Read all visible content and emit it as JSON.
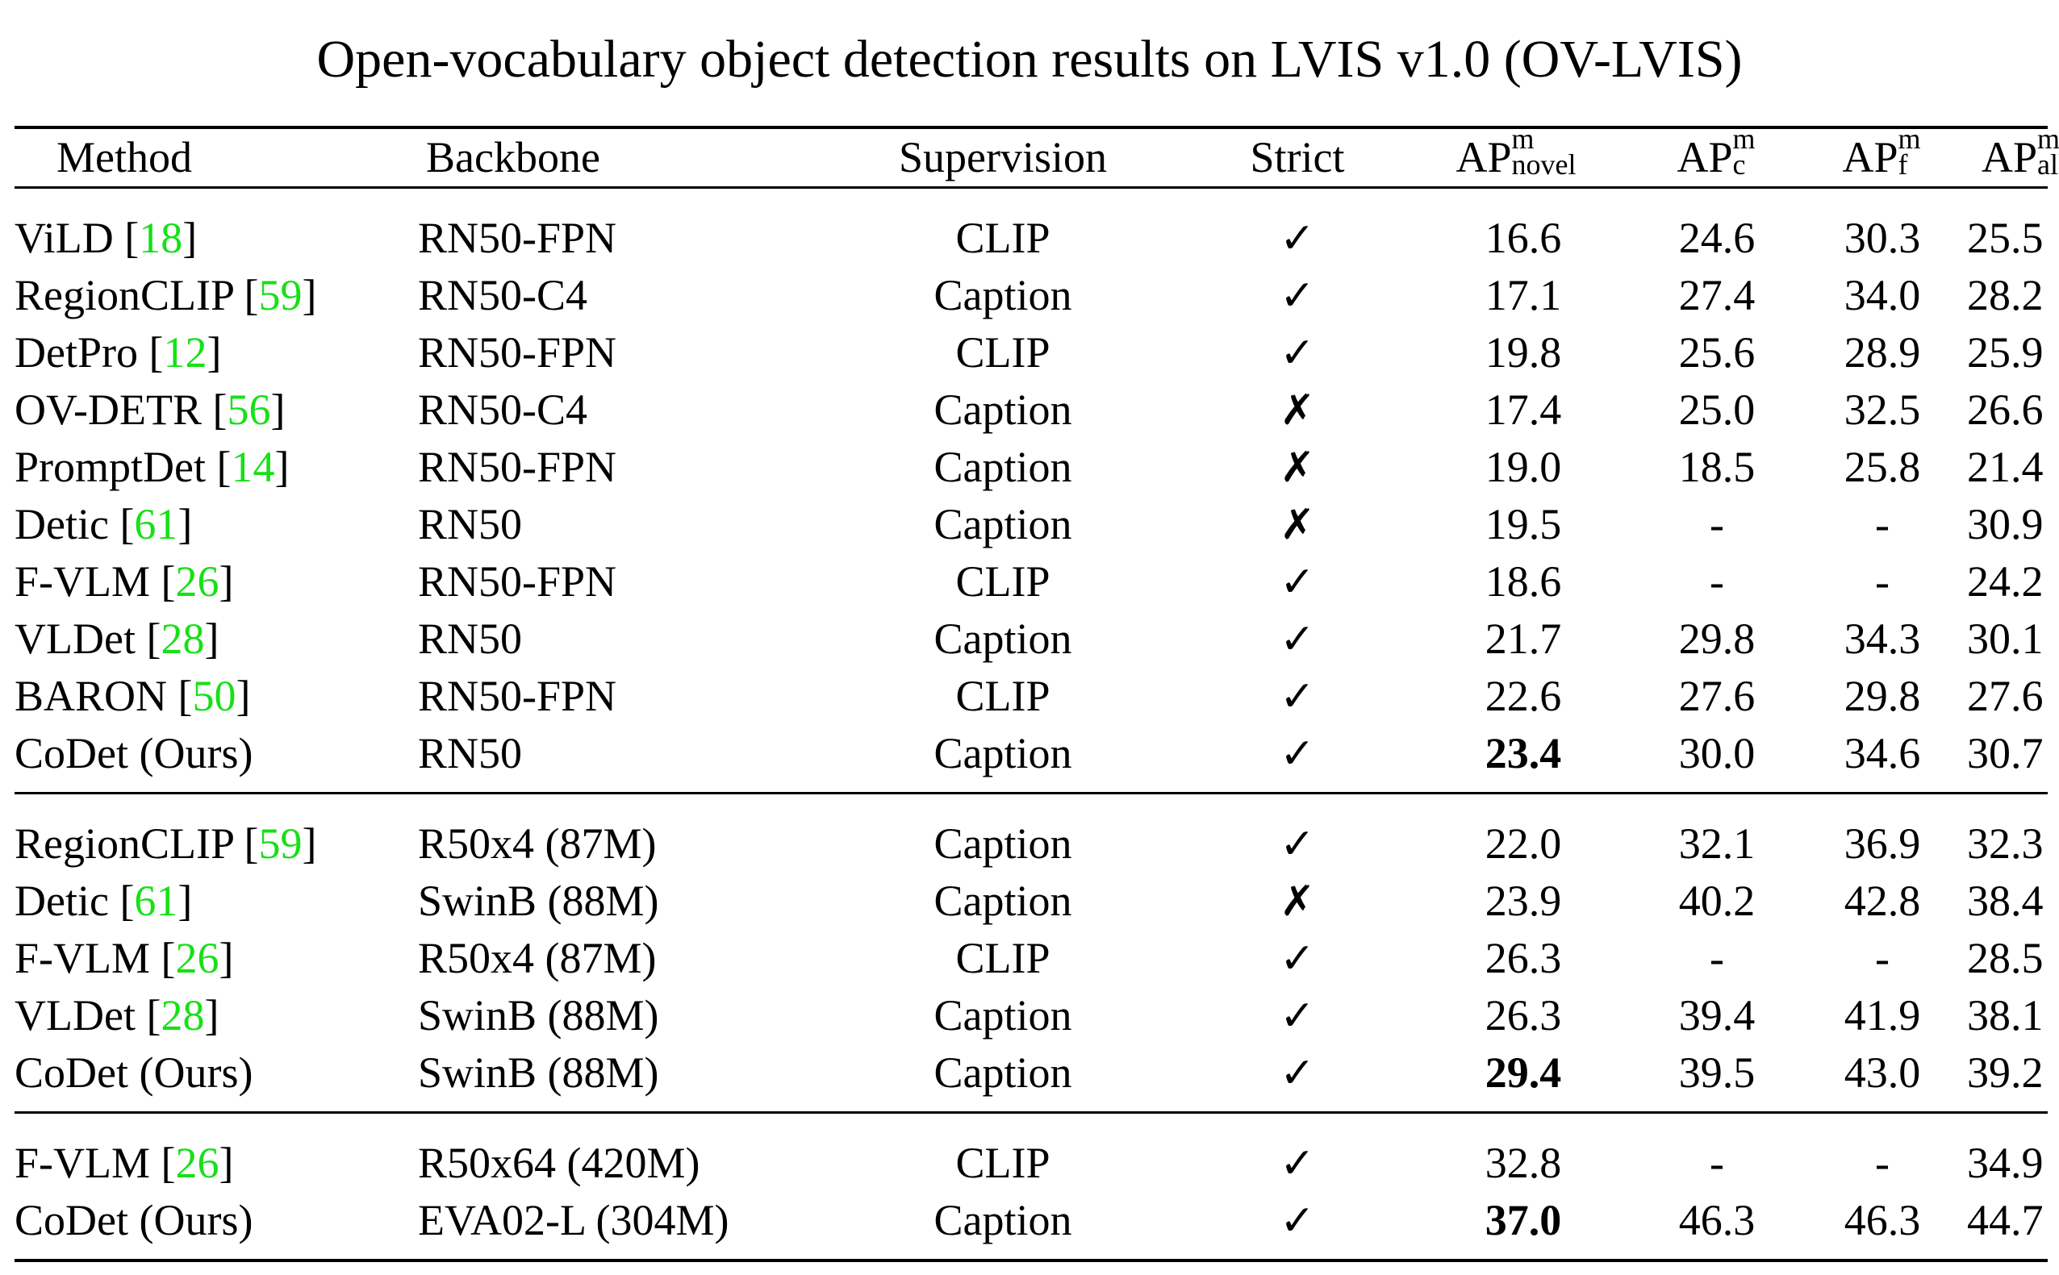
{
  "title": "Open-vocabulary object detection results on LVIS v1.0 (OV-LVIS)",
  "header": {
    "method": "Method",
    "backbone": "Backbone",
    "supervision": "Supervision",
    "strict": "Strict",
    "ap_main": "AP",
    "ap_sup": "m",
    "novel_sub": "novel",
    "c_sub": "c",
    "f_sub": "f",
    "all_sub": "all"
  },
  "groups": [
    {
      "rows": [
        {
          "name": "ViLD [",
          "cite": "18",
          "close": "]",
          "backbone": "RN50-FPN",
          "supervision": "CLIP",
          "strict": "✓",
          "novel": "16.6",
          "c": "24.6",
          "f": "30.3",
          "all": "25.5"
        },
        {
          "name": "RegionCLIP [",
          "cite": "59",
          "close": "]",
          "backbone": "RN50-C4",
          "supervision": "Caption",
          "strict": "✓",
          "novel": "17.1",
          "c": "27.4",
          "f": "34.0",
          "all": "28.2"
        },
        {
          "name": "DetPro [",
          "cite": "12",
          "close": "]",
          "backbone": "RN50-FPN",
          "supervision": "CLIP",
          "strict": "✓",
          "novel": "19.8",
          "c": "25.6",
          "f": "28.9",
          "all": "25.9"
        },
        {
          "name": "OV-DETR [",
          "cite": "56",
          "close": "]",
          "backbone": "RN50-C4",
          "supervision": "Caption",
          "strict": "✗",
          "novel": "17.4",
          "c": "25.0",
          "f": "32.5",
          "all": "26.6"
        },
        {
          "name": "PromptDet [",
          "cite": "14",
          "close": "]",
          "backbone": "RN50-FPN",
          "supervision": "Caption",
          "strict": "✗",
          "novel": "19.0",
          "c": "18.5",
          "f": "25.8",
          "all": "21.4"
        },
        {
          "name": "Detic [",
          "cite": "61",
          "close": "]",
          "backbone": "RN50",
          "supervision": "Caption",
          "strict": "✗",
          "novel": "19.5",
          "c": "-",
          "f": "-",
          "all": "30.9"
        },
        {
          "name": "F-VLM [",
          "cite": "26",
          "close": "]",
          "backbone": "RN50-FPN",
          "supervision": "CLIP",
          "strict": "✓",
          "novel": "18.6",
          "c": "-",
          "f": "-",
          "all": "24.2"
        },
        {
          "name": "VLDet [",
          "cite": "28",
          "close": "]",
          "backbone": "RN50",
          "supervision": "Caption",
          "strict": "✓",
          "novel": "21.7",
          "c": "29.8",
          "f": "34.3",
          "all": "30.1"
        },
        {
          "name": "BARON [",
          "cite": "50",
          "close": "]",
          "backbone": "RN50-FPN",
          "supervision": "CLIP",
          "strict": "✓",
          "novel": "22.6",
          "c": "27.6",
          "f": "29.8",
          "all": "27.6"
        },
        {
          "name": "CoDet (Ours)",
          "cite": "",
          "close": "",
          "backbone": "RN50",
          "supervision": "Caption",
          "strict": "✓",
          "novel": "23.4",
          "c": "30.0",
          "f": "34.6",
          "all": "30.7",
          "novel_bold": true
        }
      ]
    },
    {
      "rows": [
        {
          "name": "RegionCLIP [",
          "cite": "59",
          "close": "]",
          "backbone": "R50x4 (87M)",
          "supervision": "Caption",
          "strict": "✓",
          "novel": "22.0",
          "c": "32.1",
          "f": "36.9",
          "all": "32.3"
        },
        {
          "name": "Detic [",
          "cite": "61",
          "close": "]",
          "backbone": "SwinB (88M)",
          "supervision": "Caption",
          "strict": "✗",
          "novel": "23.9",
          "c": "40.2",
          "f": "42.8",
          "all": "38.4"
        },
        {
          "name": "F-VLM [",
          "cite": "26",
          "close": "]",
          "backbone": "R50x4 (87M)",
          "supervision": "CLIP",
          "strict": "✓",
          "novel": "26.3",
          "c": "-",
          "f": "-",
          "all": "28.5"
        },
        {
          "name": "VLDet [",
          "cite": "28",
          "close": "]",
          "backbone": "SwinB (88M)",
          "supervision": "Caption",
          "strict": "✓",
          "novel": "26.3",
          "c": "39.4",
          "f": "41.9",
          "all": "38.1"
        },
        {
          "name": "CoDet (Ours)",
          "cite": "",
          "close": "",
          "backbone": "SwinB (88M)",
          "supervision": "Caption",
          "strict": "✓",
          "novel": "29.4",
          "c": "39.5",
          "f": "43.0",
          "all": "39.2",
          "novel_bold": true
        }
      ]
    },
    {
      "rows": [
        {
          "name": "F-VLM [",
          "cite": "26",
          "close": "]",
          "backbone": "R50x64 (420M)",
          "supervision": "CLIP",
          "strict": "✓",
          "novel": "32.8",
          "c": "-",
          "f": "-",
          "all": "34.9"
        },
        {
          "name": "CoDet (Ours)",
          "cite": "",
          "close": "",
          "backbone": "EVA02-L (304M)",
          "supervision": "Caption",
          "strict": "✓",
          "novel": "37.0",
          "c": "46.3",
          "f": "46.3",
          "all": "44.7",
          "novel_bold": true
        }
      ]
    }
  ],
  "colors": {
    "citation": "#17e017",
    "rule": "#000000"
  }
}
